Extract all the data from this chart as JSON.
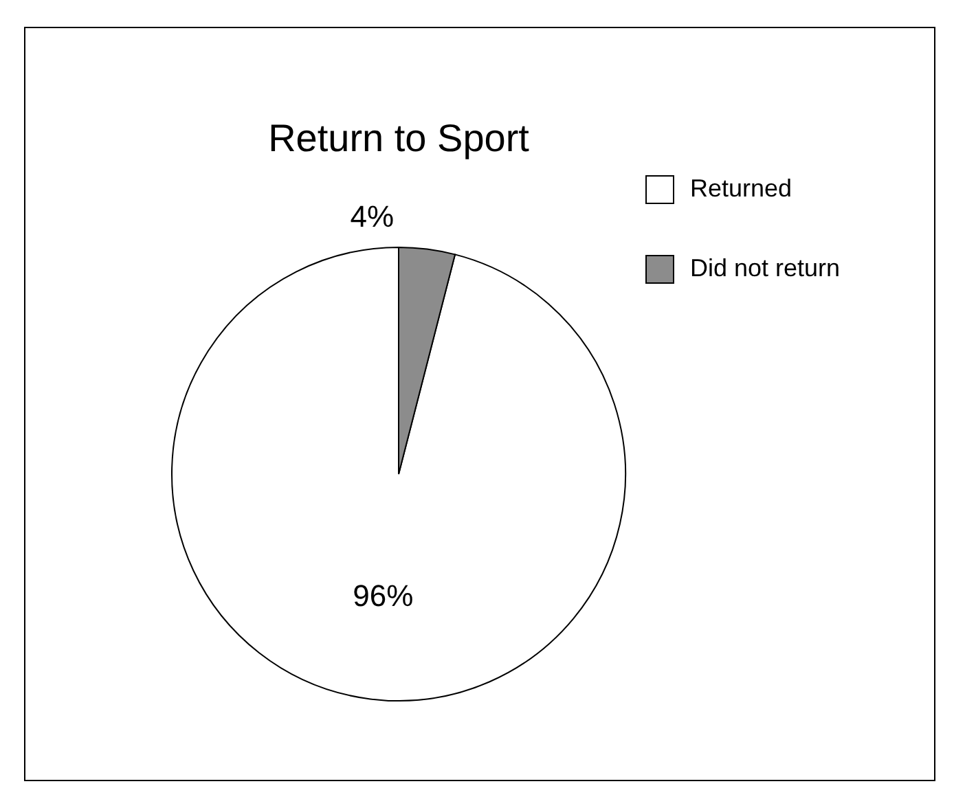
{
  "chart_data": {
    "type": "pie",
    "title": "Return to Sport",
    "categories": [
      "Returned",
      "Did not return"
    ],
    "values": [
      96,
      4
    ],
    "colors": [
      "#ffffff",
      "#8c8c8c"
    ],
    "value_labels": [
      "96%",
      "4%"
    ],
    "legend": "top right"
  }
}
